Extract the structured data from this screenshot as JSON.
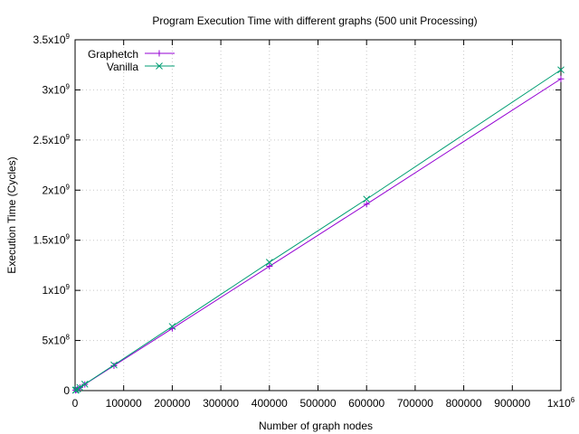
{
  "chart_data": {
    "type": "line",
    "title": "Program Execution Time with different graphs (500 unit Processing)",
    "xlabel": "Number of graph nodes",
    "ylabel": "Execution Time (Cycles)",
    "xlim": [
      0,
      1000000
    ],
    "ylim": [
      0,
      3500000000
    ],
    "grid": true,
    "legend_position": "top-left",
    "x_ticks": [
      {
        "value": 0,
        "label": "0"
      },
      {
        "value": 100000,
        "label": "100000"
      },
      {
        "value": 200000,
        "label": "200000"
      },
      {
        "value": 300000,
        "label": "300000"
      },
      {
        "value": 400000,
        "label": "400000"
      },
      {
        "value": 500000,
        "label": "500000"
      },
      {
        "value": 600000,
        "label": "600000"
      },
      {
        "value": 700000,
        "label": "700000"
      },
      {
        "value": 800000,
        "label": "800000"
      },
      {
        "value": 900000,
        "label": "900000"
      },
      {
        "value": 1000000,
        "label": "1x10",
        "sup": "6"
      }
    ],
    "y_ticks": [
      {
        "value": 0,
        "label": "0"
      },
      {
        "value": 500000000,
        "label": "5x10",
        "sup": "8"
      },
      {
        "value": 1000000000,
        "label": "1x10",
        "sup": "9"
      },
      {
        "value": 1500000000,
        "label": "1.5x10",
        "sup": "9"
      },
      {
        "value": 2000000000,
        "label": "2x10",
        "sup": "9"
      },
      {
        "value": 2500000000,
        "label": "2.5x10",
        "sup": "9"
      },
      {
        "value": 3000000000,
        "label": "3x10",
        "sup": "9"
      },
      {
        "value": 3500000000,
        "label": "3.5x10",
        "sup": "9"
      }
    ],
    "series": [
      {
        "name": "Graphetch",
        "color": "#9400d3",
        "marker": "plus",
        "x": [
          1000,
          2000,
          5000,
          10000,
          20000,
          80000,
          200000,
          400000,
          600000,
          1000000
        ],
        "y": [
          3100000,
          6200000,
          15500000,
          31000000,
          62000000,
          248000000,
          620000000,
          1240000000,
          1860000000,
          3110000000
        ]
      },
      {
        "name": "Vanilla",
        "color": "#009e73",
        "marker": "cross",
        "x": [
          1000,
          2000,
          5000,
          10000,
          20000,
          80000,
          200000,
          400000,
          600000,
          1000000
        ],
        "y": [
          3200000,
          6400000,
          16000000,
          32000000,
          64000000,
          256000000,
          640000000,
          1280000000,
          1910000000,
          3200000000
        ]
      }
    ]
  }
}
